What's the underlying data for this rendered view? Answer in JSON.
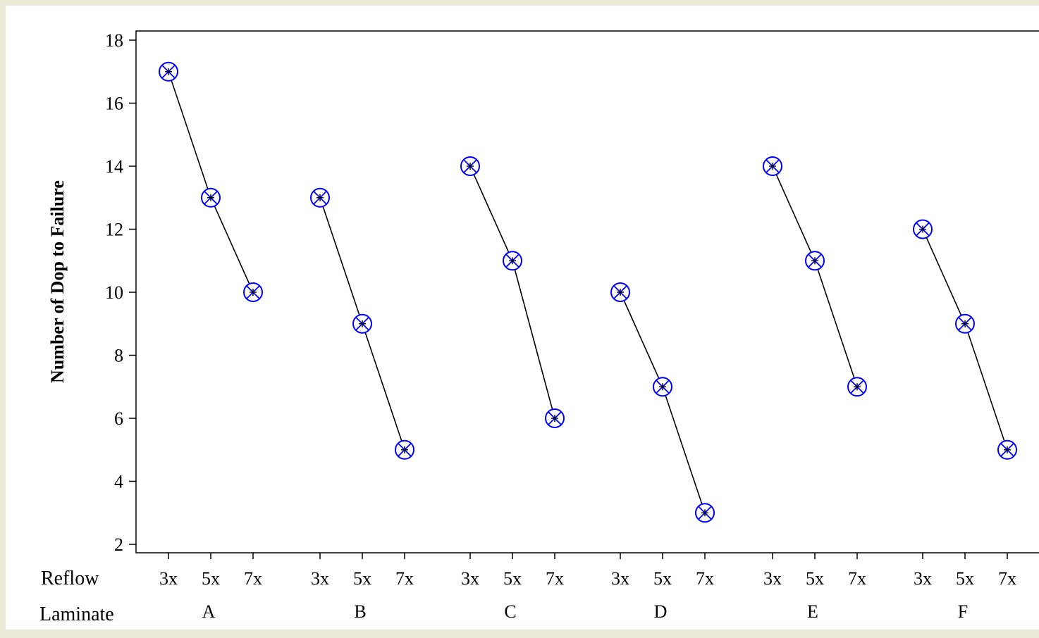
{
  "chart_data": {
    "type": "line",
    "ylabel": "Number of Dop to Failure",
    "ylim": [
      2,
      18
    ],
    "y_ticks": [
      2,
      4,
      6,
      8,
      10,
      12,
      14,
      16,
      18
    ],
    "grid": "vertical dashed at each category",
    "row_labels": {
      "reflow": "Reflow",
      "laminate": "Laminate"
    },
    "reflow_levels": [
      "3x",
      "5x",
      "7x"
    ],
    "groups": [
      {
        "laminate": "A",
        "values": [
          17,
          13,
          10
        ]
      },
      {
        "laminate": "B",
        "values": [
          13,
          9,
          5
        ]
      },
      {
        "laminate": "C",
        "values": [
          14,
          11,
          6
        ]
      },
      {
        "laminate": "D",
        "values": [
          10,
          7,
          3
        ]
      },
      {
        "laminate": "E",
        "values": [
          14,
          11,
          7
        ]
      },
      {
        "laminate": "F",
        "values": [
          12,
          9,
          5
        ]
      }
    ],
    "colors": {
      "background": "#ECE9D8",
      "plot_background": "#FFFFFF",
      "marker": "#0000FF",
      "line": "#000000",
      "grid": "#BBBBBB"
    }
  }
}
